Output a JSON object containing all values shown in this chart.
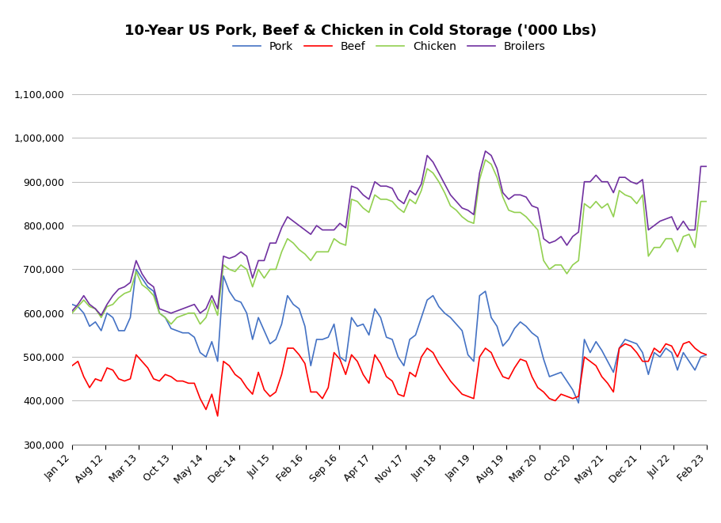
{
  "title": "10-Year US Pork, Beef & Chicken in Cold Storage ('000 Lbs)",
  "series": {
    "Pork": {
      "color": "#4472C4",
      "values": [
        620000,
        615000,
        600000,
        570000,
        580000,
        560000,
        600000,
        590000,
        560000,
        560000,
        590000,
        700000,
        680000,
        660000,
        650000,
        600000,
        590000,
        565000,
        560000,
        555000,
        555000,
        545000,
        510000,
        500000,
        535000,
        490000,
        685000,
        650000,
        630000,
        625000,
        600000,
        540000,
        590000,
        560000,
        530000,
        540000,
        575000,
        640000,
        620000,
        610000,
        570000,
        480000,
        540000,
        540000,
        545000,
        575000,
        500000,
        490000,
        590000,
        570000,
        575000,
        550000,
        610000,
        590000,
        545000,
        540000,
        500000,
        480000,
        540000,
        550000,
        590000,
        630000,
        640000,
        615000,
        600000,
        590000,
        575000,
        560000,
        505000,
        490000,
        640000,
        650000,
        590000,
        570000,
        525000,
        540000,
        565000,
        580000,
        570000,
        555000,
        545000,
        495000,
        455000,
        460000,
        465000,
        445000,
        425000,
        395000,
        540000,
        510000,
        535000,
        515000,
        490000,
        465000,
        520000,
        540000,
        535000,
        530000,
        510000,
        460000,
        510000,
        500000,
        520000,
        510000,
        470000,
        510000,
        490000,
        470000,
        500000,
        505000
      ]
    },
    "Beef": {
      "color": "#FF0000",
      "values": [
        480000,
        490000,
        455000,
        430000,
        450000,
        445000,
        475000,
        470000,
        450000,
        445000,
        450000,
        505000,
        490000,
        475000,
        450000,
        445000,
        460000,
        455000,
        445000,
        445000,
        440000,
        440000,
        405000,
        380000,
        415000,
        365000,
        490000,
        480000,
        460000,
        450000,
        430000,
        415000,
        465000,
        425000,
        410000,
        420000,
        460000,
        520000,
        520000,
        505000,
        485000,
        420000,
        420000,
        405000,
        430000,
        510000,
        495000,
        460000,
        505000,
        490000,
        460000,
        440000,
        505000,
        485000,
        455000,
        445000,
        415000,
        410000,
        465000,
        455000,
        500000,
        520000,
        510000,
        485000,
        465000,
        445000,
        430000,
        415000,
        410000,
        405000,
        500000,
        520000,
        510000,
        480000,
        455000,
        450000,
        475000,
        495000,
        490000,
        455000,
        430000,
        420000,
        405000,
        400000,
        415000,
        410000,
        405000,
        410000,
        500000,
        490000,
        480000,
        455000,
        440000,
        420000,
        520000,
        530000,
        525000,
        510000,
        490000,
        490000,
        520000,
        510000,
        530000,
        525000,
        500000,
        530000,
        535000,
        520000,
        510000,
        505000
      ]
    },
    "Chicken": {
      "color": "#92D050",
      "values": [
        600000,
        615000,
        630000,
        615000,
        610000,
        590000,
        615000,
        620000,
        635000,
        645000,
        650000,
        695000,
        665000,
        655000,
        640000,
        600000,
        590000,
        575000,
        590000,
        595000,
        600000,
        600000,
        575000,
        590000,
        630000,
        595000,
        710000,
        700000,
        695000,
        710000,
        700000,
        660000,
        700000,
        680000,
        700000,
        700000,
        740000,
        770000,
        760000,
        745000,
        735000,
        720000,
        740000,
        740000,
        740000,
        770000,
        760000,
        755000,
        860000,
        855000,
        840000,
        830000,
        870000,
        860000,
        860000,
        855000,
        840000,
        830000,
        860000,
        850000,
        880000,
        930000,
        920000,
        900000,
        875000,
        845000,
        835000,
        820000,
        810000,
        805000,
        905000,
        950000,
        940000,
        910000,
        865000,
        835000,
        830000,
        830000,
        820000,
        805000,
        790000,
        720000,
        700000,
        710000,
        710000,
        690000,
        710000,
        720000,
        850000,
        840000,
        855000,
        840000,
        850000,
        820000,
        880000,
        870000,
        865000,
        850000,
        870000,
        730000,
        750000,
        750000,
        770000,
        770000,
        740000,
        775000,
        780000,
        750000,
        855000,
        855000
      ]
    },
    "Broilers": {
      "color": "#7030A0",
      "values": [
        605000,
        620000,
        640000,
        620000,
        610000,
        595000,
        620000,
        640000,
        655000,
        660000,
        670000,
        720000,
        690000,
        670000,
        660000,
        610000,
        605000,
        600000,
        605000,
        610000,
        615000,
        620000,
        600000,
        610000,
        640000,
        610000,
        730000,
        725000,
        730000,
        740000,
        730000,
        680000,
        720000,
        720000,
        760000,
        760000,
        795000,
        820000,
        810000,
        800000,
        790000,
        780000,
        800000,
        790000,
        790000,
        790000,
        805000,
        795000,
        890000,
        885000,
        870000,
        860000,
        900000,
        890000,
        890000,
        885000,
        860000,
        850000,
        880000,
        870000,
        895000,
        960000,
        945000,
        920000,
        895000,
        870000,
        855000,
        840000,
        835000,
        825000,
        920000,
        970000,
        960000,
        930000,
        875000,
        860000,
        870000,
        870000,
        865000,
        845000,
        840000,
        770000,
        760000,
        765000,
        775000,
        755000,
        775000,
        785000,
        900000,
        900000,
        915000,
        900000,
        900000,
        875000,
        910000,
        910000,
        900000,
        895000,
        905000,
        790000,
        800000,
        810000,
        815000,
        820000,
        790000,
        810000,
        790000,
        790000,
        935000,
        935000
      ]
    }
  },
  "x_labels": [
    "Jan 12",
    "Aug 12",
    "Mar 13",
    "Oct 13",
    "May 14",
    "Dec 14",
    "Jul 15",
    "Feb 16",
    "Sep 16",
    "Apr 17",
    "Nov 17",
    "Jun 18",
    "Jan 19",
    "Aug 19",
    "Mar 20",
    "Oct 20",
    "May 21",
    "Dec 21",
    "Jul 22",
    "Feb 23"
  ],
  "ylim": [
    300000,
    1100000
  ],
  "yticks": [
    300000,
    400000,
    500000,
    600000,
    700000,
    800000,
    900000,
    1000000,
    1100000
  ],
  "background_color": "#FFFFFF",
  "grid_color": "#C0C0C0",
  "title_fontsize": 13
}
